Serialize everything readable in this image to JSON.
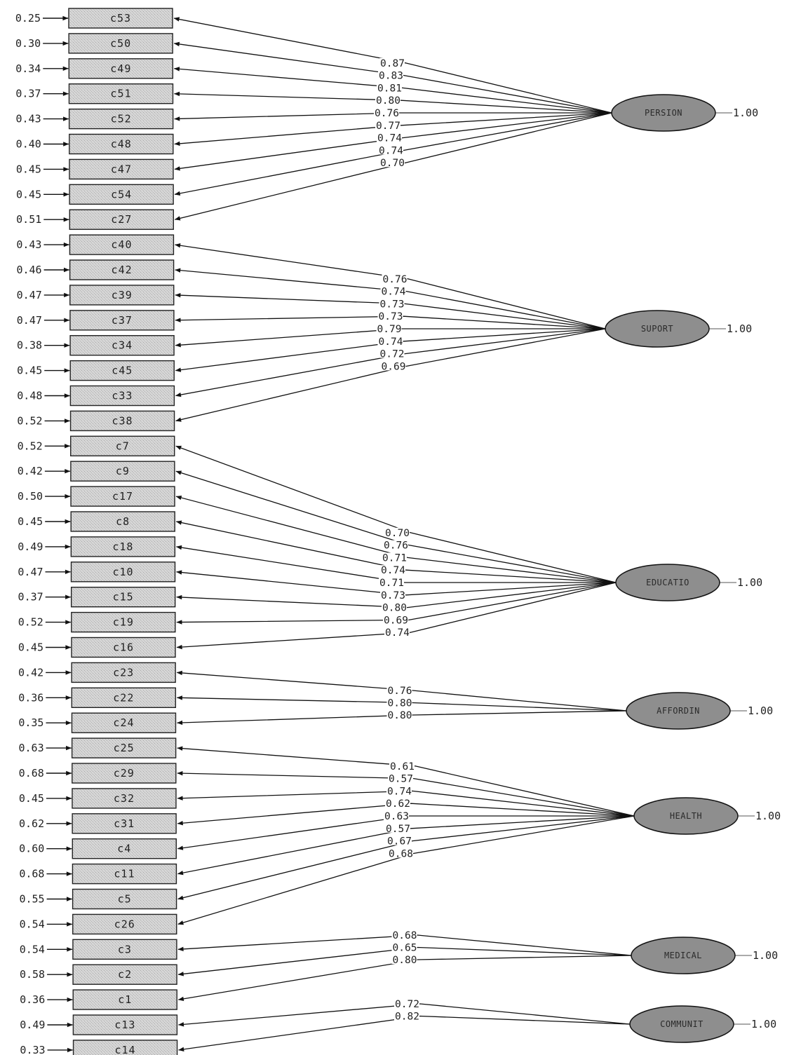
{
  "factors": [
    {
      "name": "PERSION",
      "variance": "1.00",
      "indicators": [
        {
          "id": "c53",
          "error": "0.25",
          "loading": "0.87"
        },
        {
          "id": "c50",
          "error": "0.30",
          "loading": "0.83"
        },
        {
          "id": "c49",
          "error": "0.34",
          "loading": "0.81"
        },
        {
          "id": "c51",
          "error": "0.37",
          "loading": "0.80"
        },
        {
          "id": "c52",
          "error": "0.43",
          "loading": "0.76"
        },
        {
          "id": "c48",
          "error": "0.40",
          "loading": "0.77"
        },
        {
          "id": "c47",
          "error": "0.45",
          "loading": "0.74"
        },
        {
          "id": "c54",
          "error": "0.45",
          "loading": "0.74"
        },
        {
          "id": "c27",
          "error": "0.51",
          "loading": "0.70"
        }
      ]
    },
    {
      "name": "SUPORT",
      "variance": "1.00",
      "indicators": [
        {
          "id": "c40",
          "error": "0.43",
          "loading": "0.76"
        },
        {
          "id": "c42",
          "error": "0.46",
          "loading": "0.74"
        },
        {
          "id": "c39",
          "error": "0.47",
          "loading": "0.73"
        },
        {
          "id": "c37",
          "error": "0.47",
          "loading": "0.73"
        },
        {
          "id": "c34",
          "error": "0.38",
          "loading": "0.79"
        },
        {
          "id": "c45",
          "error": "0.45",
          "loading": "0.74"
        },
        {
          "id": "c33",
          "error": "0.48",
          "loading": "0.72"
        },
        {
          "id": "c38",
          "error": "0.52",
          "loading": "0.69"
        }
      ]
    },
    {
      "name": "EDUCATIO",
      "variance": "1.00",
      "indicators": [
        {
          "id": "c7",
          "error": "0.52",
          "loading": "0.70"
        },
        {
          "id": "c9",
          "error": "0.42",
          "loading": "0.76"
        },
        {
          "id": "c17",
          "error": "0.50",
          "loading": "0.71"
        },
        {
          "id": "c8",
          "error": "0.45",
          "loading": "0.74"
        },
        {
          "id": "c18",
          "error": "0.49",
          "loading": "0.71"
        },
        {
          "id": "c10",
          "error": "0.47",
          "loading": "0.73"
        },
        {
          "id": "c15",
          "error": "0.37",
          "loading": "0.80"
        },
        {
          "id": "c19",
          "error": "0.52",
          "loading": "0.69"
        },
        {
          "id": "c16",
          "error": "0.45",
          "loading": "0.74"
        }
      ]
    },
    {
      "name": "AFFORDIN",
      "variance": "1.00",
      "indicators": [
        {
          "id": "c23",
          "error": "0.42",
          "loading": "0.76"
        },
        {
          "id": "c22",
          "error": "0.36",
          "loading": "0.80"
        },
        {
          "id": "c24",
          "error": "0.35",
          "loading": "0.80"
        }
      ]
    },
    {
      "name": "HEALTH",
      "variance": "1.00",
      "indicators": [
        {
          "id": "c25",
          "error": "0.63",
          "loading": "0.61"
        },
        {
          "id": "c29",
          "error": "0.68",
          "loading": "0.57"
        },
        {
          "id": "c32",
          "error": "0.45",
          "loading": "0.74"
        },
        {
          "id": "c31",
          "error": "0.62",
          "loading": "0.62"
        },
        {
          "id": "c4",
          "error": "0.60",
          "loading": "0.63"
        },
        {
          "id": "c11",
          "error": "0.68",
          "loading": "0.57"
        },
        {
          "id": "c5",
          "error": "0.55",
          "loading": "0.67"
        },
        {
          "id": "c26",
          "error": "0.54",
          "loading": "0.68"
        }
      ]
    },
    {
      "name": "MEDICAL",
      "variance": "1.00",
      "indicators": [
        {
          "id": "c3",
          "error": "0.54",
          "loading": "0.68"
        },
        {
          "id": "c2",
          "error": "0.58",
          "loading": "0.65"
        },
        {
          "id": "c1",
          "error": "0.36",
          "loading": "0.80"
        }
      ]
    },
    {
      "name": "COMMUNIT",
      "variance": "1.00",
      "indicators": [
        {
          "id": "c13",
          "error": "0.49",
          "loading": "0.72"
        },
        {
          "id": "c14",
          "error": "0.33",
          "loading": "0.82"
        }
      ]
    }
  ]
}
